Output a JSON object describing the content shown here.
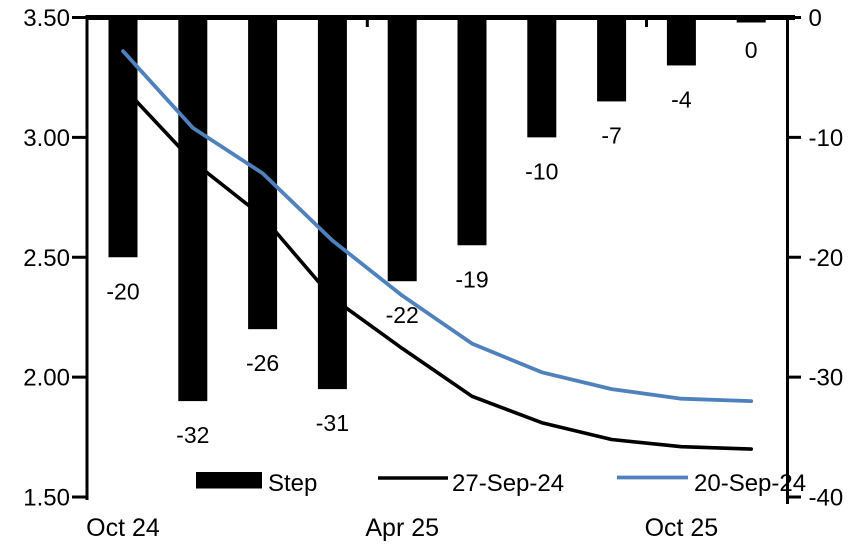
{
  "chart_data": {
    "type": "combo-bar-line",
    "title": "",
    "background_color": "#ffffff",
    "axis_color": "#000000",
    "num_categories": 10,
    "x_axis": {
      "tick_labels": [
        {
          "category_index": 0,
          "label": "Oct 24"
        },
        {
          "category_index": 4,
          "label": "Apr 25"
        },
        {
          "category_index": 8,
          "label": "Oct 25"
        }
      ]
    },
    "left_axis": {
      "min": 1.5,
      "max": 3.5,
      "tick_labels": [
        "3.50",
        "3.00",
        "2.50",
        "2.00",
        "1.50"
      ]
    },
    "right_axis": {
      "min": -40,
      "max": 0,
      "tick_labels": [
        "0",
        "-10",
        "-20",
        "-30",
        "-40"
      ]
    },
    "bars": {
      "name": "Step",
      "axis": "right",
      "color": "#000000",
      "values": [
        -20,
        -32,
        -26,
        -31,
        -22,
        -19,
        -10,
        -7,
        -4,
        0
      ],
      "data_labels": [
        "-20",
        "-32",
        "-26",
        "-31",
        "-22",
        "-19",
        "-10",
        "-7",
        "-4",
        "0"
      ]
    },
    "lines": [
      {
        "name": "27-Sep-24",
        "axis": "left",
        "color": "#000000",
        "values": [
          3.21,
          2.9,
          2.67,
          2.33,
          2.12,
          1.92,
          1.81,
          1.74,
          1.71,
          1.7
        ]
      },
      {
        "name": "20-Sep-24",
        "axis": "left",
        "color": "#4F81BD",
        "values": [
          3.36,
          3.04,
          2.85,
          2.57,
          2.34,
          2.14,
          2.02,
          1.95,
          1.91,
          1.9
        ]
      }
    ],
    "legend": [
      {
        "label": "Step",
        "type": "bar",
        "color": "#000000"
      },
      {
        "label": "27-Sep-24",
        "type": "line",
        "color": "#000000"
      },
      {
        "label": "20-Sep-24",
        "type": "line",
        "color": "#4F81BD"
      }
    ]
  }
}
